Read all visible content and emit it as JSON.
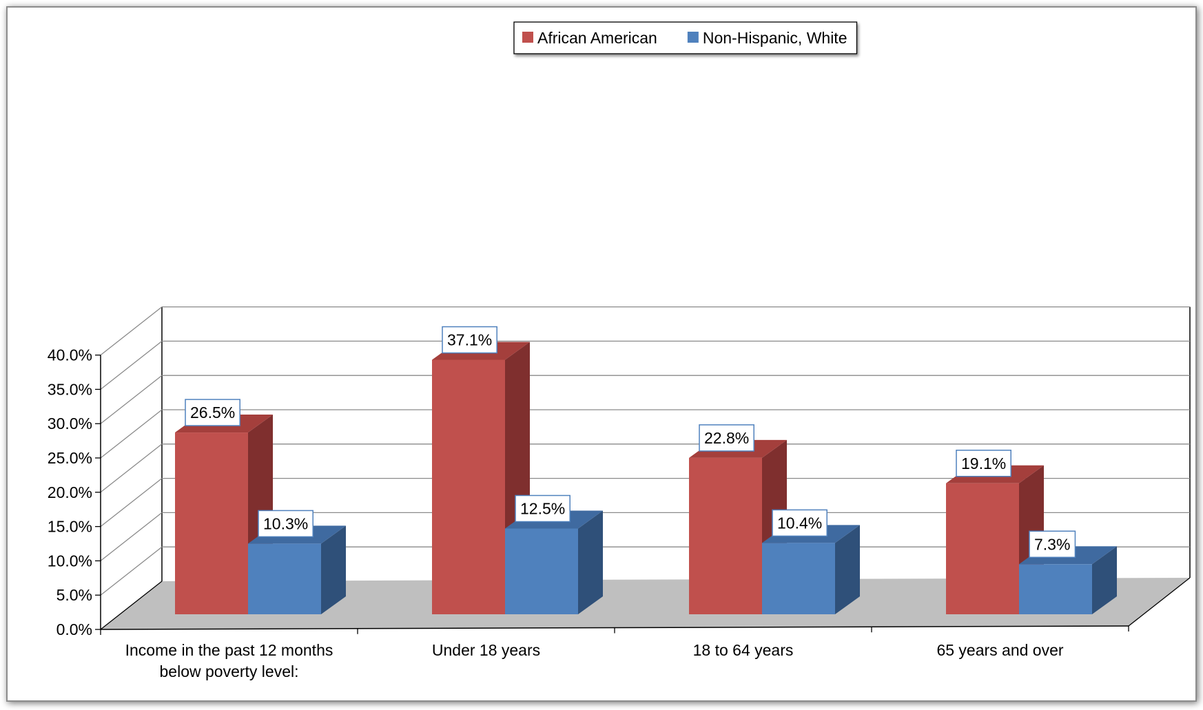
{
  "chart_data": {
    "type": "bar",
    "title": "",
    "xlabel": "",
    "ylabel": "",
    "categories": [
      [
        "Income in the past 12 months",
        "below poverty level:"
      ],
      [
        "Under 18 years"
      ],
      [
        "18 to 64 years"
      ],
      [
        "65 years and over"
      ]
    ],
    "series": [
      {
        "name": "African American",
        "values": [
          26.5,
          37.1,
          22.8,
          19.1
        ],
        "labels": [
          "26.5%",
          "37.1%",
          "22.8%",
          "19.1%"
        ]
      },
      {
        "name": "Non-Hispanic, White",
        "values": [
          10.3,
          12.5,
          10.4,
          7.3
        ],
        "labels": [
          "10.3%",
          "12.5%",
          "10.4%",
          "7.3%"
        ]
      }
    ],
    "ylim": [
      0,
      40
    ],
    "yticks": [
      0,
      5,
      10,
      15,
      20,
      25,
      30,
      35,
      40
    ],
    "ytick_labels": [
      "0.0%",
      "5.0%",
      "10.0%",
      "15.0%",
      "20.0%",
      "25.0%",
      "30.0%",
      "35.0%",
      "40.0%"
    ],
    "grid": true,
    "legend_position": "top-center",
    "colors": {
      "African American": {
        "front": "#C0504D",
        "side": "#7F2F2E",
        "top": "#A43F3C"
      },
      "Non-Hispanic, White": {
        "front": "#4F81BD",
        "side": "#2F5079",
        "top": "#3F6AA0"
      },
      "floor": "#BFBFBF",
      "frame": "#808080",
      "label_border": "#4F81BD"
    }
  }
}
